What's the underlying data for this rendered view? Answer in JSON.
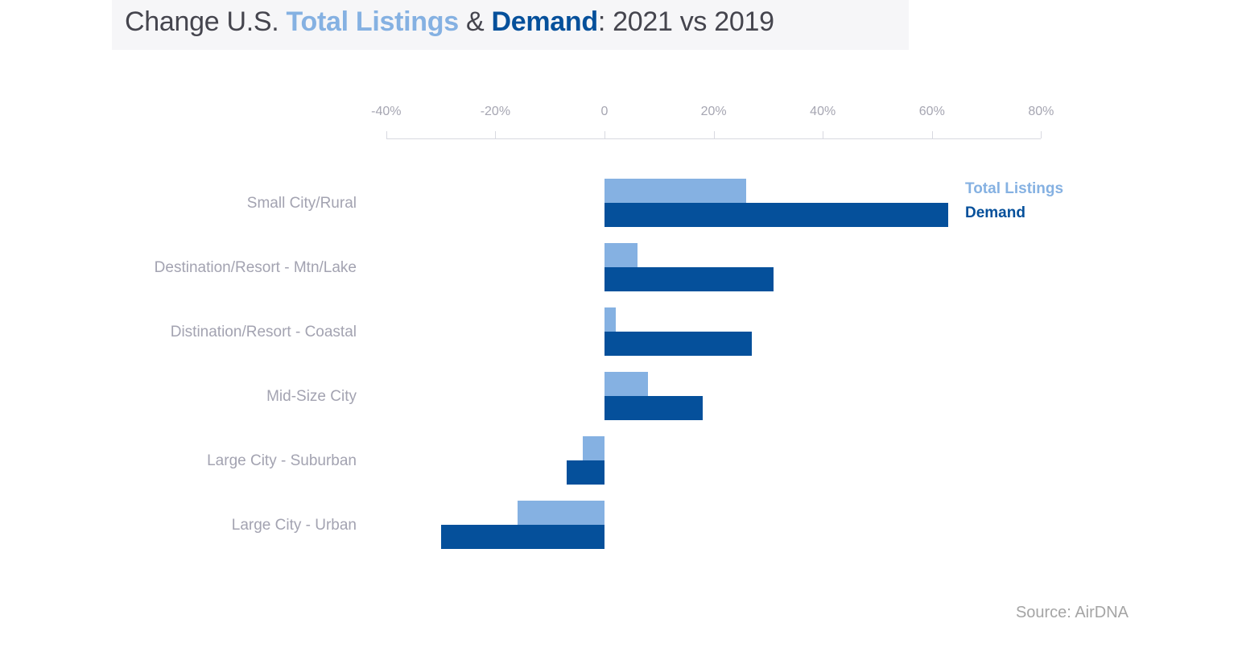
{
  "title": {
    "prefix": "Change U.S. ",
    "listings": "Total Listings",
    "amp": " & ",
    "demand": "Demand",
    "suffix": ": 2021 vs 2019"
  },
  "legend": {
    "listings": "Total Listings",
    "demand": "Demand"
  },
  "source": "Source: AirDNA",
  "colors": {
    "accent_light": "#85b1e2",
    "accent_dark": "#05509b",
    "title_gray": "#45454e",
    "label_gray": "#a3a3b1",
    "tick_gray": "#a6a6b2",
    "axis_line": "#d8d9e0",
    "source_gray": "#a5a5a5",
    "title_band_bg": "#f6f6f8"
  },
  "chart_data": {
    "type": "bar",
    "orientation": "horizontal",
    "title": "Change U.S. Total Listings & Demand: 2021 vs 2019",
    "source": "Source: AirDNA",
    "categories": [
      "Small City/Rural",
      "Destination/Resort - Mtn/Lake",
      "Distination/Resort - Coastal",
      "Mid-Size City",
      "Large City - Suburban",
      "Large City - Urban"
    ],
    "series": [
      {
        "name": "Total Listings",
        "color": "#85b1e2",
        "values": [
          26,
          6,
          2,
          8,
          -4,
          -16
        ]
      },
      {
        "name": "Demand",
        "color": "#05509b",
        "values": [
          63,
          31,
          27,
          18,
          -7,
          -30
        ]
      }
    ],
    "unit": "%",
    "x_axis": {
      "ticks": [
        "-40%",
        "-20%",
        "0",
        "20%",
        "40%",
        "60%",
        "80%"
      ],
      "tick_values": [
        -40,
        -20,
        0,
        20,
        40,
        60,
        80
      ],
      "range": [
        -40,
        80
      ],
      "position": "top",
      "grid": false
    },
    "legend_position": "right"
  }
}
